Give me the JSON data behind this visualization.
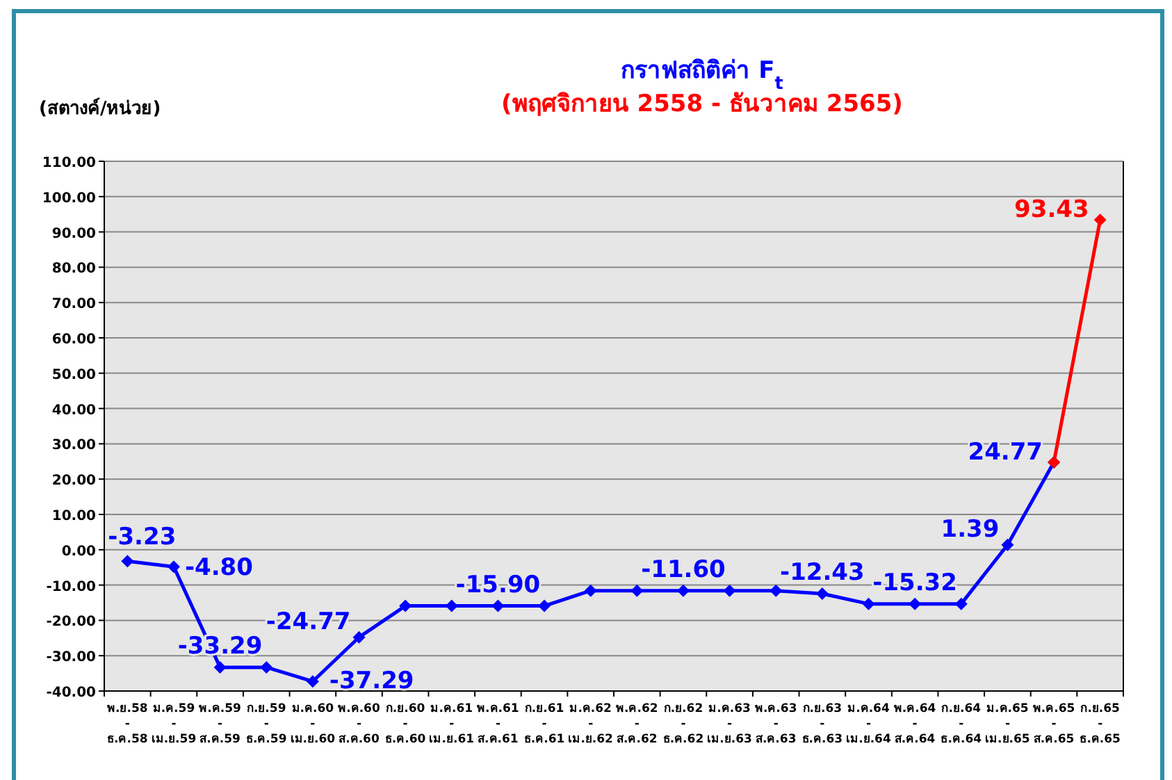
{
  "chart_data": {
    "type": "line",
    "title": "กราฟสถิติค่า F$_{t}$",
    "subtitle": "(พฤศจิกายน 2558 - ธันวาคม 2565)",
    "ylabel": "(สตางค์/หน่วย)",
    "categories": [
      "พ.ย.58\n-\nธ.ค.58",
      "ม.ค.59\n-\nเม.ย.59",
      "พ.ค.59\n-\nส.ค.59",
      "ก.ย.59\n-\nธ.ค.59",
      "ม.ค.60\n-\nเม.ย.60",
      "พ.ค.60\n-\nส.ค.60",
      "ก.ย.60\n-\nธ.ค.60",
      "ม.ค.61\n-\nเม.ย.61",
      "พ.ค.61\n-\nส.ค.61",
      "ก.ย.61\n-\nธ.ค.61",
      "ม.ค.62\n-\nเม.ย.62",
      "พ.ค.62\n-\nส.ค.62",
      "ก.ย.62\n-\nธ.ค.62",
      "ม.ค.63\n-\nเม.ย.63",
      "พ.ค.63\n-\nส.ค.63",
      "ก.ย.63\n-\nธ.ค.63",
      "ม.ค.64\n-\nเม.ย.64",
      "พ.ค.64\n-\nส.ค.64",
      "ก.ย.64\n-\nธ.ค.64",
      "ม.ค.65\n-\nเม.ย.65",
      "พ.ค.65\n-\nส.ค.65",
      "ก.ย.65\n-\nธ.ค.65"
    ],
    "series": [
      {
        "color": "#0000ff",
        "values": [
          -3.23,
          -4.8,
          -33.29,
          -33.29,
          -37.29,
          -24.77,
          -15.9,
          -15.9,
          -15.9,
          -15.9,
          -11.6,
          -11.6,
          -11.6,
          -11.6,
          -11.6,
          -12.43,
          -15.32,
          -15.32,
          -15.32,
          1.39,
          24.77,
          null
        ],
        "value_labels": [
          "-3.23",
          "-4.80",
          "-33.29",
          null,
          "-37.29",
          "-24.77",
          null,
          null,
          "-15.90",
          null,
          null,
          null,
          "-11.60",
          null,
          null,
          "-12.43",
          null,
          "-15.32",
          null,
          "1.39",
          "24.77",
          null
        ]
      },
      {
        "color": "#ff0000",
        "values": [
          null,
          null,
          null,
          null,
          null,
          null,
          null,
          null,
          null,
          null,
          null,
          null,
          null,
          null,
          null,
          null,
          null,
          null,
          null,
          null,
          24.77,
          93.43
        ],
        "value_labels": [
          null,
          null,
          null,
          null,
          null,
          null,
          null,
          null,
          null,
          null,
          null,
          null,
          null,
          null,
          null,
          null,
          null,
          null,
          null,
          null,
          null,
          "93.43"
        ]
      }
    ],
    "ylim": [
      -40,
      110
    ],
    "yticks": [
      {
        "value": -40,
        "label": "-40.00"
      },
      {
        "value": -30,
        "label": "-30.00"
      },
      {
        "value": -20,
        "label": "-20.00"
      },
      {
        "value": -10,
        "label": "-10.00"
      },
      {
        "value": 0,
        "label": "0.00"
      },
      {
        "value": 10,
        "label": "10.00"
      },
      {
        "value": 20,
        "label": "20.00"
      },
      {
        "value": 30,
        "label": "30.00"
      },
      {
        "value": 40,
        "label": "40.00"
      },
      {
        "value": 50,
        "label": "50.00"
      },
      {
        "value": 60,
        "label": "60.00"
      },
      {
        "value": 70,
        "label": "70.00"
      },
      {
        "value": 80,
        "label": "80.00"
      },
      {
        "value": 90,
        "label": "90.00"
      },
      {
        "value": 100,
        "label": "100.00"
      },
      {
        "value": 110,
        "label": "110.00"
      }
    ],
    "grid": "y",
    "marker": "diamond",
    "line_style": "solid"
  }
}
